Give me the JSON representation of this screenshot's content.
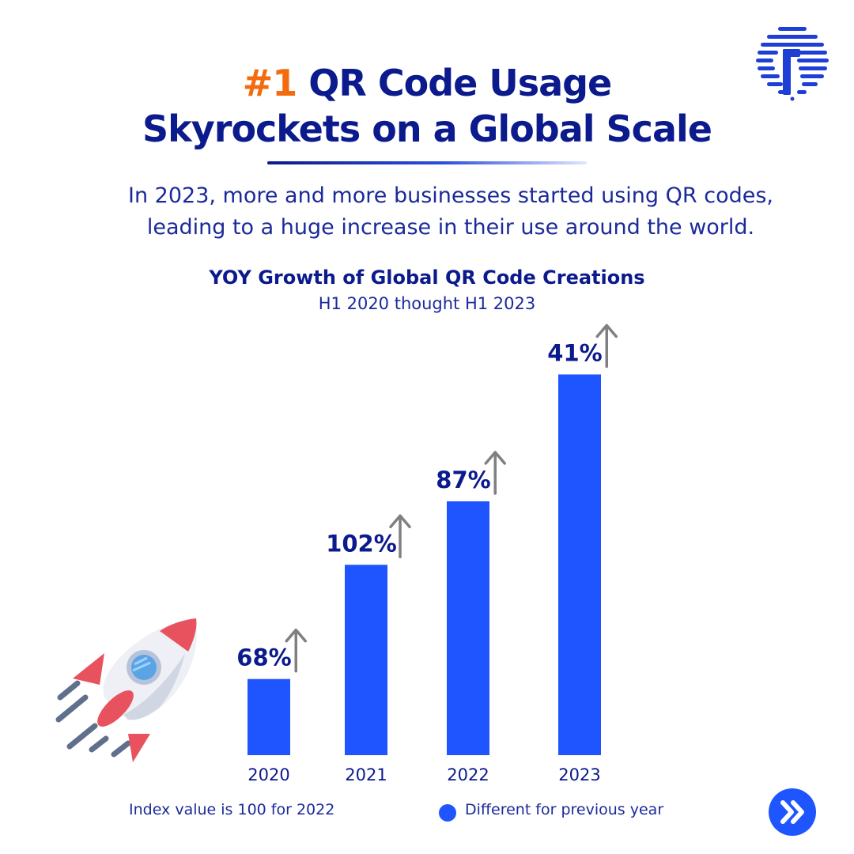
{
  "header": {
    "title_accent": "#1",
    "title_rest": " QR Code Usage",
    "title_line2": "Skyrockets on a Global Scale"
  },
  "subtitle": {
    "line1": "In 2023, more and more businesses started using QR codes,",
    "line2": "leading to a huge increase in their use around the world."
  },
  "colors": {
    "accent": "#f26b0f",
    "navy": "#0b1a8c",
    "bar": "#1f55ff",
    "arrow": "#808080"
  },
  "icons": {
    "logo": "circuit-tech-logo-icon",
    "rocket": "rocket-icon",
    "growth_arrow": "arrow-up-icon",
    "next": "double-chevron-right-icon"
  },
  "chart_data": {
    "type": "bar",
    "title": "YOY Growth of Global QR Code Creations",
    "subtitle": "H1 2020 thought H1 2023",
    "categories": [
      "2020",
      "2021",
      "2022",
      "2023"
    ],
    "values": [
      18,
      45,
      60,
      90
    ],
    "data_labels": [
      "68%",
      "102%",
      "87%",
      "41%"
    ],
    "ylim": [
      0,
      100
    ],
    "grid": false,
    "legend": {
      "note": "Index value is 100 for 2022",
      "label": "Different for previous year",
      "placement": "bottom"
    }
  },
  "navigation": {
    "next_label": "Next"
  }
}
